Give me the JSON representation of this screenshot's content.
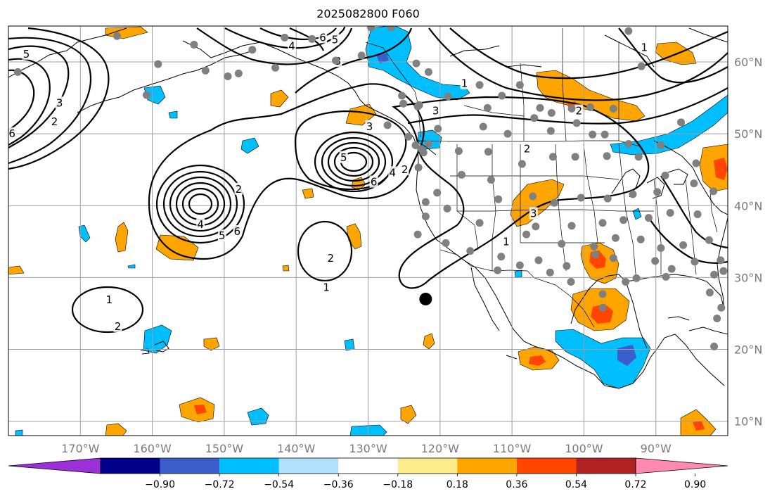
{
  "title": "2025082800 F060",
  "colors": {
    "ocean": "#ffffff",
    "grid": "#9e9e9e",
    "coast": "#000000",
    "contour": "#000000",
    "station": "#808080",
    "center_marker": "#000000"
  },
  "map": {
    "lon_range": [
      -180,
      -80
    ],
    "lat_range": [
      8,
      65
    ],
    "lon_ticks": [
      {
        "lon": -170,
        "label": "170°W"
      },
      {
        "lon": -160,
        "label": "160°W"
      },
      {
        "lon": -150,
        "label": "150°W"
      },
      {
        "lon": -140,
        "label": "140°W"
      },
      {
        "lon": -130,
        "label": "130°W"
      },
      {
        "lon": -120,
        "label": "120°W"
      },
      {
        "lon": -110,
        "label": "110°W"
      },
      {
        "lon": -100,
        "label": "100°W"
      },
      {
        "lon": -90,
        "label": "90°W"
      }
    ],
    "lat_ticks": [
      {
        "lat": 60,
        "label": "60°N"
      },
      {
        "lat": 50,
        "label": "50°N"
      },
      {
        "lat": 40,
        "label": "40°N"
      },
      {
        "lat": 30,
        "label": "30°N"
      },
      {
        "lat": 20,
        "label": "20°N"
      },
      {
        "lat": 10,
        "label": "10°N"
      }
    ]
  },
  "colorbar": {
    "colors": [
      "#9b30d9",
      "#00008b",
      "#3a5fcd",
      "#00bfff",
      "#b0e2ff",
      "#ffffff",
      "#ffec8b",
      "#ffa500",
      "#ff4500",
      "#b22222",
      "#ff89b0"
    ],
    "tick_labels": [
      "−0.90",
      "−0.72",
      "−0.54",
      "−0.36",
      "−0.18",
      "0.18",
      "0.36",
      "0.54",
      "0.72",
      "0.90"
    ]
  },
  "contour_labels": [
    {
      "text": "5",
      "lon": -177.5,
      "lat": 61.1
    },
    {
      "text": "3",
      "lon": -172.9,
      "lat": 54.3
    },
    {
      "text": "2",
      "lon": -173.6,
      "lat": 51.7
    },
    {
      "text": "6",
      "lon": -179.5,
      "lat": 50.0
    },
    {
      "text": "2",
      "lon": -148.0,
      "lat": 42.3
    },
    {
      "text": "4",
      "lon": -153.3,
      "lat": 37.4
    },
    {
      "text": "5",
      "lon": -150.3,
      "lat": 35.8
    },
    {
      "text": "6",
      "lon": -148.2,
      "lat": 36.4
    },
    {
      "text": "2",
      "lon": -135.2,
      "lat": 32.7
    },
    {
      "text": "1",
      "lon": -135.8,
      "lat": 28.6
    },
    {
      "text": "1",
      "lon": -166.0,
      "lat": 26.9
    },
    {
      "text": "2",
      "lon": -164.8,
      "lat": 23.2
    },
    {
      "text": "4",
      "lon": -140.6,
      "lat": 62.2
    },
    {
      "text": "6",
      "lon": -136.3,
      "lat": 63.4
    },
    {
      "text": "5",
      "lon": -134.6,
      "lat": 63.1
    },
    {
      "text": "3",
      "lon": -134.2,
      "lat": 60.1
    },
    {
      "text": "3",
      "lon": -129.8,
      "lat": 51.0
    },
    {
      "text": "5",
      "lon": -133.4,
      "lat": 46.7
    },
    {
      "text": "6",
      "lon": -129.2,
      "lat": 43.3
    },
    {
      "text": "4",
      "lon": -126.6,
      "lat": 44.6
    },
    {
      "text": "2",
      "lon": -124.9,
      "lat": 45.0
    },
    {
      "text": "1",
      "lon": -116.6,
      "lat": 57.0
    },
    {
      "text": "3",
      "lon": -120.6,
      "lat": 53.2
    },
    {
      "text": "2",
      "lon": -100.7,
      "lat": 53.2
    },
    {
      "text": "2",
      "lon": -107.9,
      "lat": 47.9
    },
    {
      "text": "3",
      "lon": -107.0,
      "lat": 38.9
    },
    {
      "text": "1",
      "lon": -110.8,
      "lat": 35.0
    },
    {
      "text": "1",
      "lon": -91.6,
      "lat": 62.0
    }
  ],
  "stations": [
    [
      -164.9,
      63.6
    ],
    [
      -154.2,
      62.4
    ],
    [
      -159.2,
      59.7
    ],
    [
      -152.6,
      58.8
    ],
    [
      -146.1,
      61.7
    ],
    [
      -141.6,
      63.4
    ],
    [
      -160.8,
      55.4
    ],
    [
      -178.7,
      58.6
    ],
    [
      -129.6,
      64.8
    ],
    [
      -126.8,
      64.8
    ],
    [
      -137.8,
      63.2
    ],
    [
      -148.0,
      58.4
    ],
    [
      -149.5,
      58.0
    ],
    [
      -142.9,
      59.2
    ],
    [
      -134.5,
      60.2
    ],
    [
      -130.9,
      60.9
    ],
    [
      -123.3,
      59.8
    ],
    [
      -121.6,
      58.6
    ],
    [
      -125.3,
      55.3
    ],
    [
      -123.1,
      53.8
    ],
    [
      -118.9,
      55.2
    ],
    [
      -114.5,
      56.8
    ],
    [
      -111.4,
      55.3
    ],
    [
      -113.4,
      53.6
    ],
    [
      -108.9,
      56.8
    ],
    [
      -106.1,
      53.6
    ],
    [
      -104.5,
      52.9
    ],
    [
      -101.7,
      53.5
    ],
    [
      -99.1,
      53.7
    ],
    [
      -95.9,
      53.5
    ],
    [
      -93.8,
      64.3
    ],
    [
      -92.0,
      59.4
    ],
    [
      -86.5,
      51.6
    ],
    [
      -114.0,
      51.0
    ],
    [
      -110.6,
      50.0
    ],
    [
      -106.9,
      52.2
    ],
    [
      -104.6,
      50.4
    ],
    [
      -101.0,
      51.5
    ],
    [
      -98.8,
      49.9
    ],
    [
      -97.1,
      49.9
    ],
    [
      -93.8,
      48.6
    ],
    [
      -89.3,
      48.4
    ],
    [
      -122.9,
      54.0
    ],
    [
      -120.3,
      50.7
    ],
    [
      -123.4,
      48.4
    ],
    [
      -122.6,
      47.9
    ],
    [
      -122.3,
      47.4
    ],
    [
      -117.4,
      47.6
    ],
    [
      -113.3,
      47.5
    ],
    [
      -108.6,
      45.8
    ],
    [
      -104.3,
      46.8
    ],
    [
      -101.2,
      46.8
    ],
    [
      -96.8,
      46.9
    ],
    [
      -92.4,
      46.8
    ],
    [
      -88.7,
      44.2
    ],
    [
      -84.4,
      45.9
    ],
    [
      -123.0,
      45.3
    ],
    [
      -120.4,
      41.8
    ],
    [
      -117.0,
      44.3
    ],
    [
      -112.9,
      43.6
    ],
    [
      -107.1,
      41.3
    ],
    [
      -104.1,
      40.4
    ],
    [
      -100.4,
      41.1
    ],
    [
      -96.7,
      41.0
    ],
    [
      -93.2,
      41.6
    ],
    [
      -89.8,
      41.9
    ],
    [
      -84.7,
      43.1
    ],
    [
      -82.0,
      42.0
    ],
    [
      -122.0,
      40.5
    ],
    [
      -122.0,
      38.5
    ],
    [
      -119.0,
      39.6
    ],
    [
      -114.5,
      37.6
    ],
    [
      -111.9,
      40.9
    ],
    [
      -106.7,
      37.1
    ],
    [
      -101.7,
      37.2
    ],
    [
      -97.4,
      37.6
    ],
    [
      -94.5,
      38.0
    ],
    [
      -91.0,
      38.3
    ],
    [
      -88.0,
      39.0
    ],
    [
      -84.2,
      38.8
    ],
    [
      -123.1,
      36.0
    ],
    [
      -119.2,
      34.8
    ],
    [
      -115.8,
      33.7
    ],
    [
      -111.5,
      32.9
    ],
    [
      -108.0,
      36.0
    ],
    [
      -106.3,
      32.4
    ],
    [
      -103.1,
      34.7
    ],
    [
      -98.6,
      34.3
    ],
    [
      -95.6,
      35.5
    ],
    [
      -92.1,
      35.3
    ],
    [
      -89.3,
      34.1
    ],
    [
      -86.2,
      34.5
    ],
    [
      -82.6,
      35.2
    ],
    [
      -81.0,
      32.4
    ],
    [
      -84.6,
      32.2
    ],
    [
      -87.8,
      31.2
    ],
    [
      -90.1,
      32.3
    ],
    [
      -92.7,
      29.9
    ],
    [
      -95.9,
      32.7
    ],
    [
      -98.4,
      33.2
    ],
    [
      -102.4,
      31.6
    ],
    [
      -104.7,
      30.7
    ],
    [
      -108.9,
      31.7
    ],
    [
      -112.0,
      31.0
    ],
    [
      -101.8,
      29.4
    ],
    [
      -97.4,
      27.7
    ],
    [
      -94.2,
      29.4
    ],
    [
      -88.6,
      30.1
    ],
    [
      -81.9,
      30.4
    ],
    [
      -82.5,
      27.9
    ],
    [
      -80.9,
      25.8
    ],
    [
      -81.5,
      24.3
    ],
    [
      -97.4,
      25.8
    ],
    [
      -81.9,
      20.4
    ],
    [
      -125.1,
      54.2
    ],
    [
      -124.4,
      49.6
    ],
    [
      -127.3,
      51.2
    ],
    [
      -121.6,
      48.6
    ],
    [
      -80.6,
      30.9
    ]
  ],
  "center_marker": {
    "lon": -122.0,
    "lat": 27.0
  }
}
